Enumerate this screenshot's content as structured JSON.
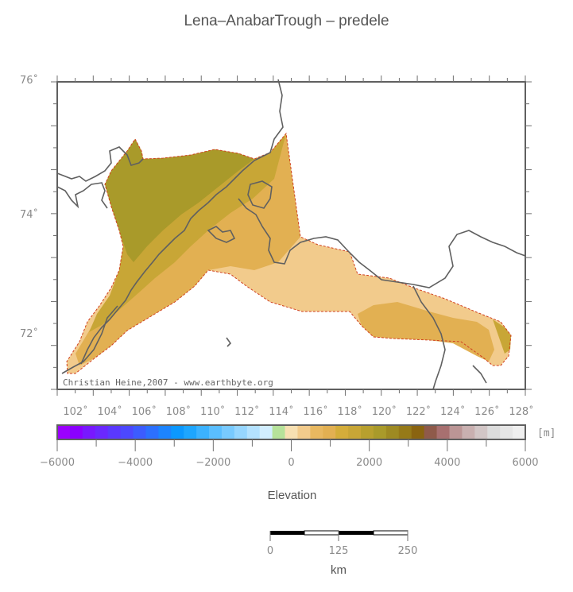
{
  "title": "Lena–AnabarTrough – predele",
  "map": {
    "lat_labels": [
      "76˚",
      "74˚",
      "72˚"
    ],
    "lon_labels": [
      "102˚",
      "104˚",
      "106˚",
      "108˚",
      "110˚",
      "112˚",
      "114˚",
      "116˚",
      "118˚",
      "120˚",
      "122˚",
      "124˚",
      "126˚",
      "128˚"
    ],
    "credit": "Christian Heine,2007 - www.earthbyte.org",
    "colors": {
      "shallow": "#f2cb8c",
      "mid": "#e2b052",
      "deep": "#c8a636",
      "deepest": "#a99a2a",
      "border": "#d04020",
      "coast": "#606060"
    }
  },
  "colorbar": {
    "caption": "Elevation",
    "unit": "[m]",
    "tick_labels": [
      "−6000",
      "−4000",
      "−2000",
      "0",
      "2000",
      "4000",
      "6000"
    ],
    "range": [
      -6000,
      6000
    ],
    "colors": [
      "#9b00ff",
      "#8a00ff",
      "#7818ff",
      "#6a28ff",
      "#5a38ff",
      "#4c48ff",
      "#3c5cff",
      "#2c70ff",
      "#1c84ff",
      "#0c98ff",
      "#1ea6ff",
      "#3cb2ff",
      "#5abeff",
      "#78caff",
      "#96d6ff",
      "#b4e2ff",
      "#d2eeff",
      "#b6e29a",
      "#f7e0b2",
      "#f2cb8c",
      "#e8b860",
      "#e2b052",
      "#d4ad3a",
      "#c8a636",
      "#b8a02e",
      "#a99a2a",
      "#9e8a22",
      "#967a18",
      "#8a6410",
      "#8f5a4a",
      "#a87070",
      "#bb9595",
      "#c9b0b0",
      "#d2c6c6",
      "#dcdcdc",
      "#e6e6e6",
      "#efefef"
    ]
  },
  "scalebar": {
    "labels": [
      "0",
      "125",
      "250"
    ],
    "unit": "km"
  }
}
